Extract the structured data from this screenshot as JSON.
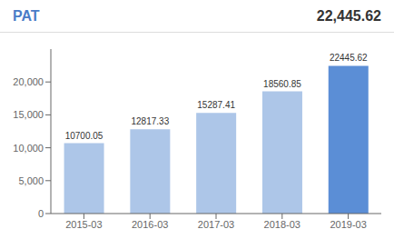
{
  "chart_data": {
    "type": "bar",
    "title": "PAT",
    "annotations": [
      "22,445.62"
    ],
    "categories": [
      "2015-03",
      "2016-03",
      "2017-03",
      "2018-03",
      "2019-03"
    ],
    "values": [
      10700.05,
      12817.33,
      15287.41,
      18560.85,
      22445.62
    ],
    "colors": [
      "#adc6e8",
      "#adc6e8",
      "#adc6e8",
      "#adc6e8",
      "#5b8ed6"
    ],
    "ylim": [
      0,
      25000
    ],
    "yticks": [
      0,
      {
        "value": 5000,
        "label": "5,000"
      },
      {
        "value": 10000,
        "label": "10,000"
      },
      {
        "value": 15000,
        "label": "15,000"
      },
      {
        "value": 20000,
        "label": "20,000"
      }
    ],
    "data_labels": true,
    "grid": false
  }
}
